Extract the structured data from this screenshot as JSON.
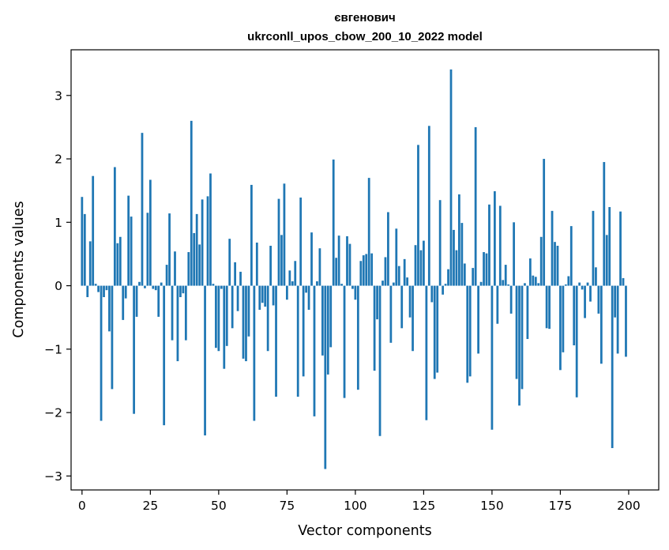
{
  "chart_data": {
    "type": "bar",
    "title_line1": "євгенович",
    "title_line2": "ukrconll_upos_cbow_200_10_2022 model",
    "xlabel": "Vector components",
    "ylabel": "Components values",
    "xlim": [
      -4,
      211
    ],
    "ylim": [
      -3.22,
      3.72
    ],
    "xticks": [
      0,
      25,
      50,
      75,
      100,
      125,
      150,
      175,
      200
    ],
    "yticks": [
      -3,
      -2,
      -1,
      0,
      1,
      2,
      3
    ],
    "bar_color": "#1f77b4",
    "x": [
      0,
      1,
      2,
      3,
      4,
      5,
      6,
      7,
      8,
      9,
      10,
      11,
      12,
      13,
      14,
      15,
      16,
      17,
      18,
      19,
      20,
      21,
      22,
      23,
      24,
      25,
      26,
      27,
      28,
      29,
      30,
      31,
      32,
      33,
      34,
      35,
      36,
      37,
      38,
      39,
      40,
      41,
      42,
      43,
      44,
      45,
      46,
      47,
      48,
      49,
      50,
      51,
      52,
      53,
      54,
      55,
      56,
      57,
      58,
      59,
      60,
      61,
      62,
      63,
      64,
      65,
      66,
      67,
      68,
      69,
      70,
      71,
      72,
      73,
      74,
      75,
      76,
      77,
      78,
      79,
      80,
      81,
      82,
      83,
      84,
      85,
      86,
      87,
      88,
      89,
      90,
      91,
      92,
      93,
      94,
      95,
      96,
      97,
      98,
      99,
      100,
      101,
      102,
      103,
      104,
      105,
      106,
      107,
      108,
      109,
      110,
      111,
      112,
      113,
      114,
      115,
      116,
      117,
      118,
      119,
      120,
      121,
      122,
      123,
      124,
      125,
      126,
      127,
      128,
      129,
      130,
      131,
      132,
      133,
      134,
      135,
      136,
      137,
      138,
      139,
      140,
      141,
      142,
      143,
      144,
      145,
      146,
      147,
      148,
      149,
      150,
      151,
      152,
      153,
      154,
      155,
      156,
      157,
      158,
      159,
      160,
      161,
      162,
      163,
      164,
      165,
      166,
      167,
      168,
      169,
      170,
      171,
      172,
      173,
      174,
      175,
      176,
      177,
      178,
      179,
      180,
      181,
      182,
      183,
      184,
      185,
      186,
      187,
      188,
      189,
      190,
      191,
      192,
      193,
      194,
      195,
      196,
      197,
      198,
      199
    ],
    "values": [
      1.4,
      1.13,
      -0.18,
      0.7,
      1.73,
      0.03,
      -0.1,
      -2.13,
      -0.18,
      -0.07,
      -0.72,
      -1.63,
      1.87,
      0.67,
      0.77,
      -0.54,
      -0.2,
      1.42,
      1.09,
      -2.02,
      -0.49,
      0.06,
      2.41,
      -0.04,
      1.15,
      1.67,
      -0.05,
      -0.07,
      -0.49,
      0.05,
      -2.2,
      0.33,
      1.14,
      -0.86,
      0.54,
      -1.19,
      -0.18,
      -0.12,
      -0.86,
      0.53,
      2.6,
      0.83,
      1.13,
      0.65,
      1.36,
      -2.36,
      1.41,
      1.77,
      0.03,
      -0.98,
      -1.03,
      -0.05,
      -1.31,
      -0.95,
      0.74,
      -0.67,
      0.37,
      -0.4,
      0.22,
      -1.15,
      -1.19,
      -0.8,
      1.59,
      -2.13,
      0.68,
      -0.38,
      -0.27,
      -0.33,
      -1.03,
      0.63,
      -0.31,
      -1.75,
      1.37,
      0.8,
      1.61,
      -0.22,
      0.24,
      0.07,
      0.39,
      -1.75,
      1.39,
      -1.43,
      -0.11,
      -0.38,
      0.84,
      -2.06,
      0.07,
      0.59,
      -1.1,
      -2.89,
      -1.4,
      -0.97,
      1.99,
      0.44,
      0.79,
      0.03,
      -1.77,
      0.78,
      0.66,
      -0.05,
      -0.22,
      -1.64,
      0.39,
      0.48,
      0.5,
      1.7,
      0.51,
      -1.34,
      -0.53,
      -2.37,
      0.08,
      0.45,
      1.16,
      -0.9,
      0.05,
      0.9,
      0.31,
      -0.67,
      0.42,
      0.13,
      -0.5,
      -1.03,
      0.64,
      2.22,
      0.56,
      0.71,
      -2.12,
      2.52,
      -0.26,
      -1.47,
      -1.37,
      1.35,
      -0.14,
      0.03,
      0.26,
      3.41,
      0.88,
      0.56,
      1.44,
      0.99,
      0.35,
      -1.53,
      -1.43,
      0.28,
      2.5,
      -1.07,
      0.06,
      0.53,
      0.51,
      1.28,
      -2.27,
      1.49,
      -0.6,
      1.26,
      0.09,
      0.33,
      0.02,
      -0.44,
      1.0,
      -1.47,
      -1.89,
      -1.63,
      0.04,
      -0.84,
      0.43,
      0.16,
      0.14,
      0.04,
      0.77,
      2.0,
      -0.67,
      -0.68,
      1.18,
      0.69,
      0.63,
      -1.33,
      -1.05,
      0.02,
      0.15,
      0.94,
      -0.94,
      -1.76,
      0.05,
      -0.06,
      -0.51,
      0.05,
      -0.25,
      1.18,
      0.29,
      -0.44,
      -1.23,
      1.95,
      0.8,
      1.24,
      -2.56,
      -0.5,
      -1.07,
      1.17,
      0.12,
      -1.12
    ]
  }
}
